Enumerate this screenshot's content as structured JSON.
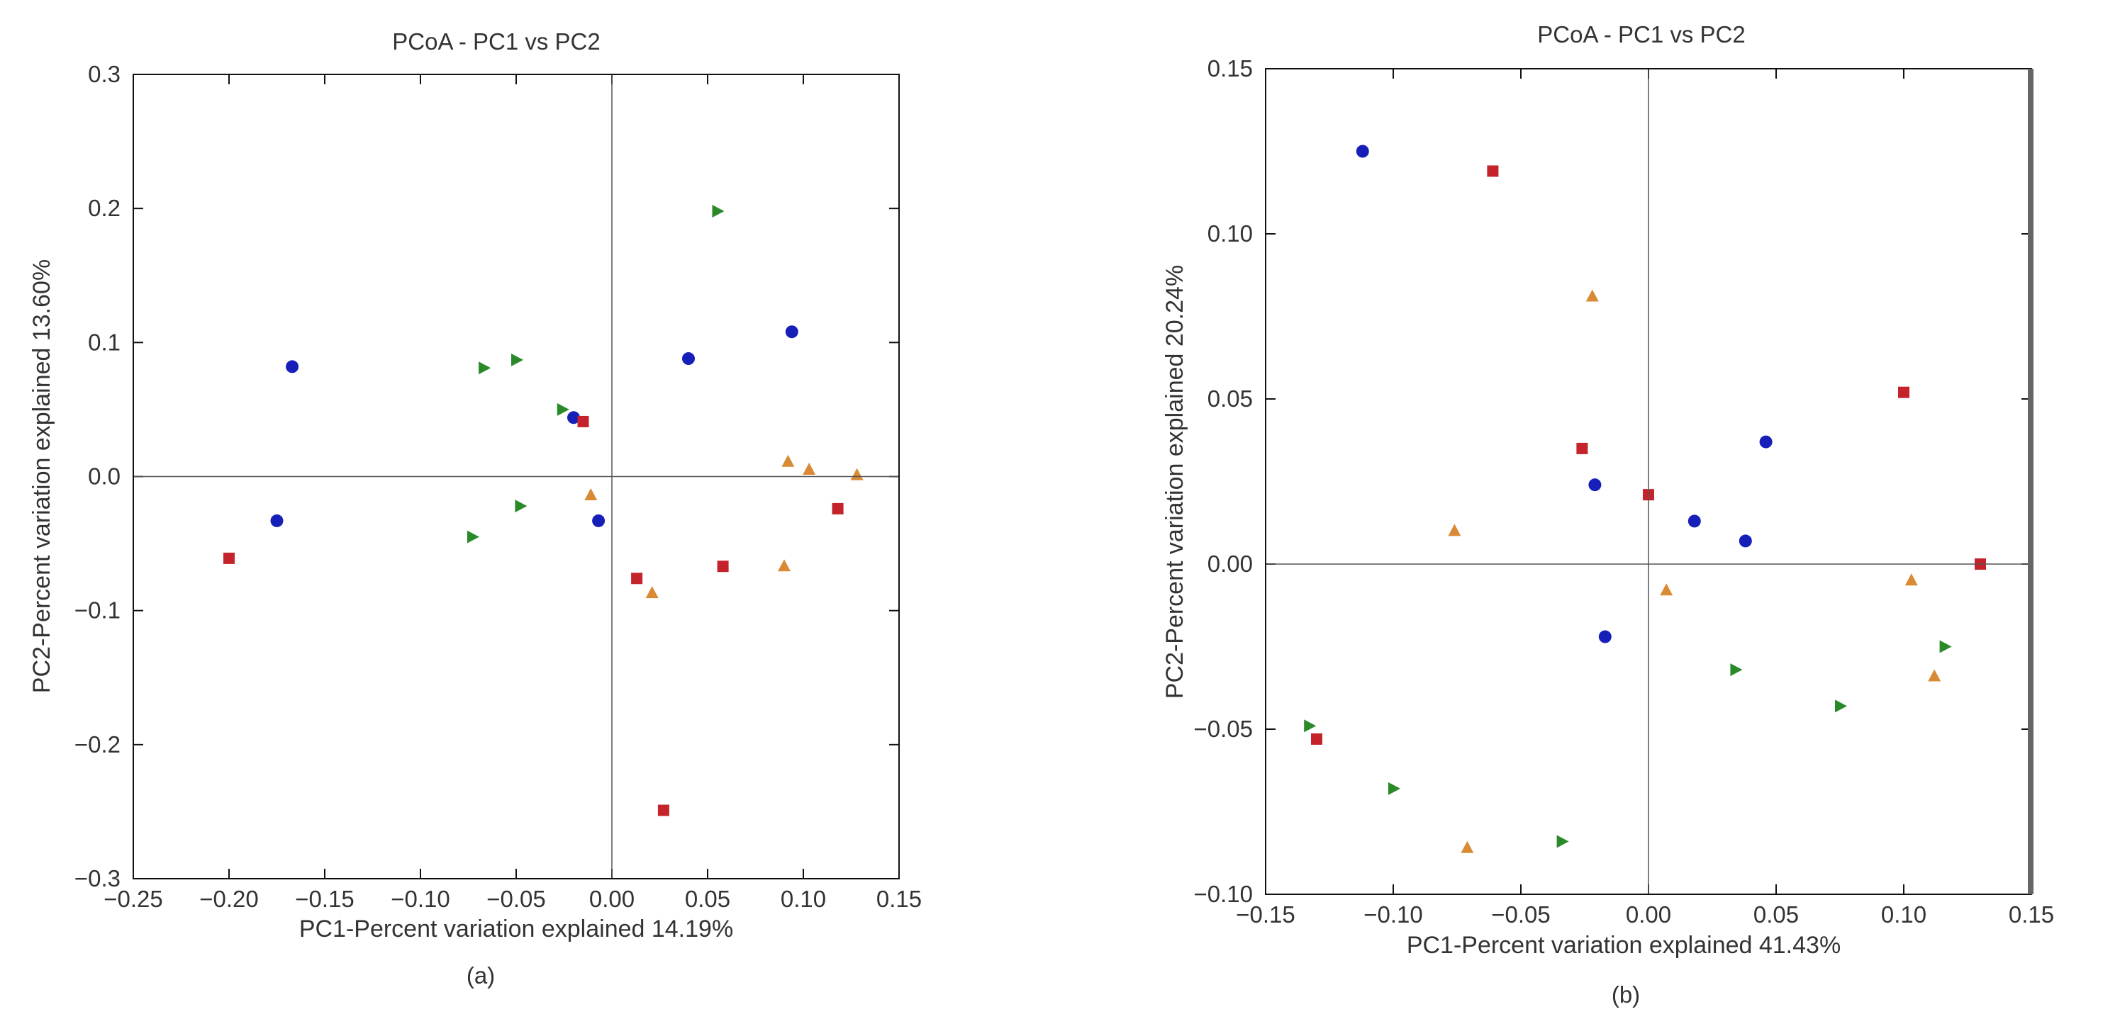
{
  "colors": {
    "circle": "#1620b8",
    "square": "#c4232b",
    "triangle_up": "#d98a35",
    "triangle_right": "#2a8a2a",
    "axis": "#111111",
    "zero_line": "#555555",
    "text": "#333333"
  },
  "chart_data": [
    {
      "type": "scatter",
      "title": "PCoA - PC1 vs PC2",
      "xlabel": "PC1-Percent variation explained 14.19%",
      "ylabel": "PC2-Percent variation explained 13.60%",
      "caption": "(a)",
      "xlim": [
        -0.25,
        0.15
      ],
      "ylim": [
        -0.3,
        0.3
      ],
      "xticks": [
        -0.25,
        -0.2,
        -0.15,
        -0.1,
        -0.05,
        0.0,
        0.05,
        0.1,
        0.15
      ],
      "xtick_labels": [
        "−0.25",
        "−0.20",
        "−0.15",
        "−0.10",
        "−0.05",
        "0.00",
        "0.05",
        "0.10",
        "0.15"
      ],
      "yticks": [
        -0.3,
        -0.2,
        -0.1,
        0.0,
        0.1,
        0.2,
        0.3
      ],
      "ytick_labels": [
        "−0.3",
        "−0.2",
        "−0.1",
        "0.0",
        "0.1",
        "0.2",
        "0.3"
      ],
      "series": [
        {
          "name": "circle",
          "marker": "circle",
          "points": [
            [
              -0.167,
              0.082
            ],
            [
              -0.175,
              -0.033
            ],
            [
              -0.02,
              0.044
            ],
            [
              -0.007,
              -0.033
            ],
            [
              0.04,
              0.088
            ],
            [
              0.094,
              0.108
            ]
          ]
        },
        {
          "name": "square",
          "marker": "square",
          "points": [
            [
              -0.2,
              -0.061
            ],
            [
              -0.015,
              0.041
            ],
            [
              0.013,
              -0.076
            ],
            [
              0.058,
              -0.067
            ],
            [
              0.027,
              -0.249
            ],
            [
              0.118,
              -0.024
            ]
          ]
        },
        {
          "name": "triangle_up",
          "marker": "triangle-up",
          "points": [
            [
              -0.011,
              -0.014
            ],
            [
              0.021,
              -0.087
            ],
            [
              0.092,
              0.011
            ],
            [
              0.103,
              0.005
            ],
            [
              0.128,
              0.001
            ],
            [
              0.09,
              -0.067
            ]
          ]
        },
        {
          "name": "triangle_right",
          "marker": "triangle-right",
          "points": [
            [
              0.055,
              0.198
            ],
            [
              -0.067,
              0.081
            ],
            [
              -0.05,
              0.087
            ],
            [
              -0.026,
              0.05
            ],
            [
              -0.073,
              -0.045
            ],
            [
              -0.048,
              -0.022
            ]
          ]
        }
      ]
    },
    {
      "type": "scatter",
      "title": "PCoA - PC1 vs PC2",
      "xlabel": "PC1-Percent variation explained 41.43%",
      "ylabel": "PC2-Percent variation explained 20.24%",
      "caption": "(b)",
      "xlim": [
        -0.15,
        0.15
      ],
      "ylim": [
        -0.1,
        0.15
      ],
      "xticks": [
        -0.15,
        -0.1,
        -0.05,
        0.0,
        0.05,
        0.1,
        0.15
      ],
      "xtick_labels": [
        "−0.15",
        "−0.10",
        "−0.05",
        "0.00",
        "0.05",
        "0.10",
        "0.15"
      ],
      "yticks": [
        -0.1,
        -0.05,
        0.0,
        0.05,
        0.1,
        0.15
      ],
      "ytick_labels": [
        "−0.10",
        "−0.05",
        "0.00",
        "0.05",
        "0.10",
        "0.15"
      ],
      "series": [
        {
          "name": "circle",
          "marker": "circle",
          "points": [
            [
              -0.112,
              0.125
            ],
            [
              -0.021,
              0.024
            ],
            [
              0.018,
              0.013
            ],
            [
              0.046,
              0.037
            ],
            [
              0.038,
              0.007
            ],
            [
              -0.017,
              -0.022
            ]
          ]
        },
        {
          "name": "square",
          "marker": "square",
          "points": [
            [
              -0.061,
              0.119
            ],
            [
              -0.026,
              0.035
            ],
            [
              0.0,
              0.021
            ],
            [
              0.1,
              0.052
            ],
            [
              0.13,
              0.0
            ],
            [
              -0.13,
              -0.053
            ]
          ]
        },
        {
          "name": "triangle_up",
          "marker": "triangle-up",
          "points": [
            [
              -0.022,
              0.081
            ],
            [
              -0.076,
              0.01
            ],
            [
              0.007,
              -0.008
            ],
            [
              0.103,
              -0.005
            ],
            [
              0.112,
              -0.034
            ],
            [
              -0.071,
              -0.086
            ]
          ]
        },
        {
          "name": "triangle_right",
          "marker": "triangle-right",
          "points": [
            [
              -0.133,
              -0.049
            ],
            [
              -0.1,
              -0.068
            ],
            [
              -0.034,
              -0.084
            ],
            [
              0.034,
              -0.032
            ],
            [
              0.075,
              -0.043
            ],
            [
              0.116,
              -0.025
            ]
          ]
        }
      ]
    }
  ]
}
